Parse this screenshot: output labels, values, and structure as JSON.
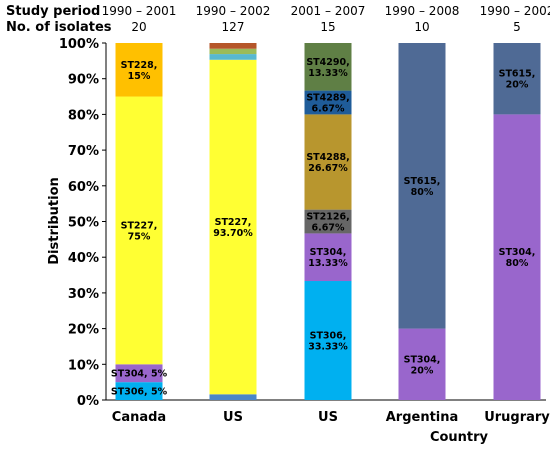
{
  "chart_data": {
    "type": "bar",
    "stacked": true,
    "ylabel": "Distribution",
    "xlabel": "Country",
    "ylim": [
      0,
      100
    ],
    "yticks": [
      "0%",
      "10%",
      "20%",
      "30%",
      "40%",
      "50%",
      "60%",
      "70%",
      "80%",
      "90%",
      "100%"
    ],
    "header": {
      "period_label": "Study period",
      "isolates_label": "No. of isolates"
    },
    "categories": [
      "Canada",
      "US",
      "US",
      "Argentina",
      "Urugrary"
    ],
    "periods": [
      "1990 – 2001",
      "1990 – 2002",
      "2001 – 2007",
      "1990 – 2008",
      "1990 – 2002"
    ],
    "isolates": [
      "20",
      "127",
      "15",
      "10",
      "5"
    ],
    "bars": [
      {
        "segments": [
          {
            "value": 5,
            "color": "#00b0f0",
            "label": [
              "ST306, 5%"
            ]
          },
          {
            "value": 5,
            "color": "#9966cc",
            "label": [
              "ST304, 5%"
            ]
          },
          {
            "value": 75,
            "color": "#ffff33",
            "label": [
              "ST227,",
              "75%"
            ]
          },
          {
            "value": 15,
            "color": "#ffc000",
            "label": [
              "ST228,",
              "15%"
            ]
          }
        ]
      },
      {
        "segments": [
          {
            "value": 1.6,
            "color": "#4a86c8",
            "label": []
          },
          {
            "value": 93.7,
            "color": "#ffff33",
            "label": [
              "ST227,",
              "93.70%"
            ]
          },
          {
            "value": 1.6,
            "color": "#58b8d0",
            "label": []
          },
          {
            "value": 1.5,
            "color": "#9bbb59",
            "label": []
          },
          {
            "value": 1.6,
            "color": "#b5562a",
            "label": []
          }
        ]
      },
      {
        "segments": [
          {
            "value": 33.33,
            "color": "#00b0f0",
            "label": [
              "ST306,",
              "33.33%"
            ]
          },
          {
            "value": 13.33,
            "color": "#9966cc",
            "label": [
              "ST304,",
              "13.33%"
            ]
          },
          {
            "value": 6.67,
            "color": "#666666",
            "label": [
              "ST2126,",
              "6.67%"
            ]
          },
          {
            "value": 26.67,
            "color": "#b8962e",
            "label": [
              "ST4288,",
              "26.67%"
            ]
          },
          {
            "value": 6.67,
            "color": "#1f5c99",
            "label": [
              "ST4289,",
              "6.67%"
            ]
          },
          {
            "value": 13.33,
            "color": "#5f7f45",
            "label": [
              "ST4290,",
              "13.33%"
            ]
          }
        ]
      },
      {
        "segments": [
          {
            "value": 20,
            "color": "#9966cc",
            "label": [
              "ST304,",
              "20%"
            ]
          },
          {
            "value": 80,
            "color": "#4f6a95",
            "label": [
              "ST615,",
              "80%"
            ]
          }
        ]
      },
      {
        "segments": [
          {
            "value": 80,
            "color": "#9966cc",
            "label": [
              "ST304,",
              "80%"
            ]
          },
          {
            "value": 20,
            "color": "#4f6a95",
            "label": [
              "ST615,",
              "20%"
            ]
          }
        ]
      }
    ]
  }
}
